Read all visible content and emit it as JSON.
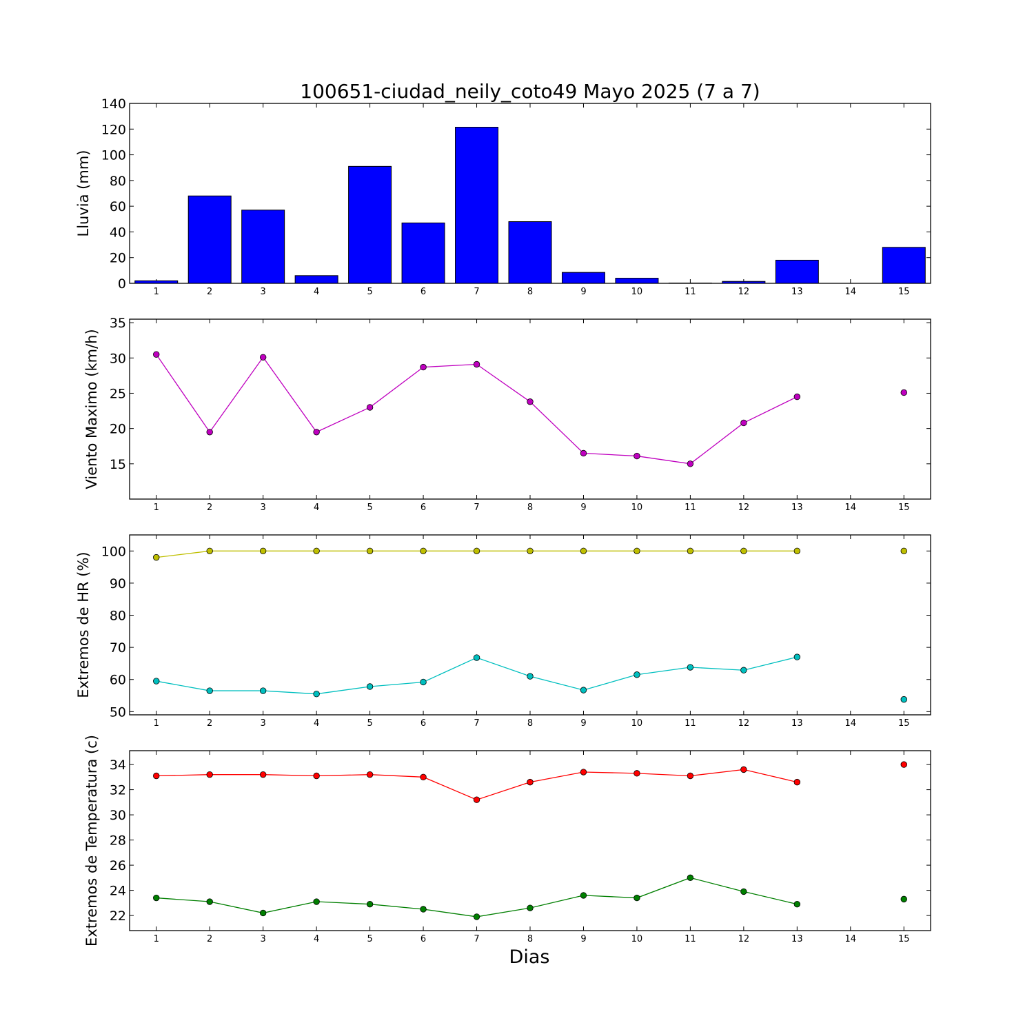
{
  "chart_data": {
    "type": "multi-panel",
    "title": "100651-ciudad_neily_coto49 Mayo 2025  (7 a 7)",
    "xlabel": "Dias",
    "x": [
      1,
      2,
      3,
      4,
      5,
      6,
      7,
      8,
      9,
      10,
      11,
      12,
      13,
      14,
      15
    ],
    "xlim": [
      0.5,
      15.5
    ],
    "panels": [
      {
        "type": "bar",
        "ylabel": "Lluvia (mm)",
        "ylim": [
          0,
          140
        ],
        "yticks": [
          0,
          20,
          40,
          60,
          80,
          100,
          120,
          140
        ],
        "series": [
          {
            "color": "#0000ff",
            "values": [
              2,
              68,
              57,
              6,
              91,
              47,
              121.5,
              48,
              8.5,
              4,
              0.2,
              1.5,
              18,
              0,
              28
            ]
          }
        ]
      },
      {
        "type": "line",
        "ylabel": "Viento Maximo (km/h)",
        "ylim": [
          10,
          35.5
        ],
        "yticks": [
          15,
          20,
          25,
          30,
          35
        ],
        "series": [
          {
            "color": "#bf00bf",
            "values": [
              30.5,
              19.5,
              30.1,
              19.5,
              23.0,
              28.7,
              29.1,
              23.8,
              16.5,
              16.1,
              15.0,
              20.8,
              24.5,
              null,
              25.1
            ]
          }
        ]
      },
      {
        "type": "line",
        "ylabel": "Extremos de HR (%)",
        "ylim": [
          49,
          105
        ],
        "yticks": [
          50,
          60,
          70,
          80,
          90,
          100
        ],
        "series": [
          {
            "color": "#bfbf00",
            "values": [
              98,
              100,
              100,
              100,
              100,
              100,
              100,
              100,
              100,
              100,
              100,
              100,
              100,
              null,
              100
            ]
          },
          {
            "color": "#00bfbf",
            "values": [
              59.5,
              56.5,
              56.5,
              55.5,
              57.8,
              59.2,
              66.8,
              61.0,
              56.7,
              61.5,
              63.8,
              62.9,
              67.0,
              null,
              53.8
            ]
          }
        ]
      },
      {
        "type": "line",
        "ylabel": "Extremos de Temperatura (c)",
        "ylim": [
          20.8,
          35.1
        ],
        "yticks": [
          22,
          24,
          26,
          28,
          30,
          32,
          34
        ],
        "series": [
          {
            "color": "#ff0000",
            "values": [
              33.1,
              33.2,
              33.2,
              33.1,
              33.2,
              33.0,
              31.2,
              32.6,
              33.4,
              33.3,
              33.1,
              33.6,
              32.6,
              null,
              34.0
            ]
          },
          {
            "color": "#007f00",
            "values": [
              23.4,
              23.1,
              22.2,
              23.1,
              22.9,
              22.5,
              21.9,
              22.6,
              23.6,
              23.4,
              25.0,
              23.9,
              22.9,
              null,
              23.3
            ]
          }
        ]
      }
    ]
  }
}
